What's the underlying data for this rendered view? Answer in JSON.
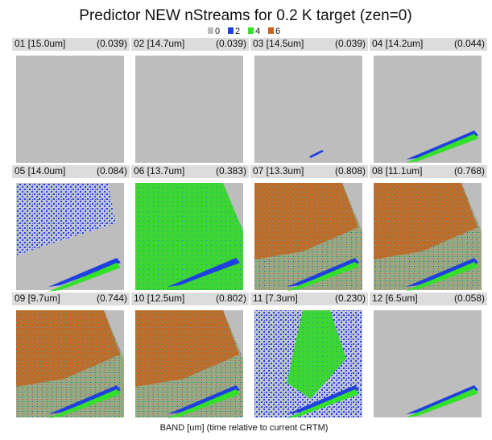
{
  "header": {
    "title": "Predictor NEW nStreams for 0.2 K target (zen=0)"
  },
  "legend": [
    {
      "label": "0",
      "color": "#bdbdbd"
    },
    {
      "label": "2",
      "color": "#1f3fe0"
    },
    {
      "label": "4",
      "color": "#33e02a"
    },
    {
      "label": "6",
      "color": "#c8611e"
    }
  ],
  "panels": [
    {
      "band": "01 [15.0um]",
      "value": "(0.039)"
    },
    {
      "band": "02 [14.7um]",
      "value": "(0.039)"
    },
    {
      "band": "03 [14.5um]",
      "value": "(0.039)"
    },
    {
      "band": "04 [14.2um]",
      "value": "(0.044)"
    },
    {
      "band": "05 [14.0um]",
      "value": "(0.084)"
    },
    {
      "band": "06 [13.7um]",
      "value": "(0.383)"
    },
    {
      "band": "07 [13.3um]",
      "value": "(0.808)"
    },
    {
      "band": "08 [11.1um]",
      "value": "(0.768)"
    },
    {
      "band": "09 [9.7um]",
      "value": "(0.744)"
    },
    {
      "band": "10 [12.5um]",
      "value": "(0.802)"
    },
    {
      "band": "11 [7.3um]",
      "value": "(0.230)"
    },
    {
      "band": "12 [6.5um]",
      "value": "(0.058)"
    }
  ],
  "footer": {
    "caption": "BAND [um]  (time relative to current CRTM)"
  }
}
